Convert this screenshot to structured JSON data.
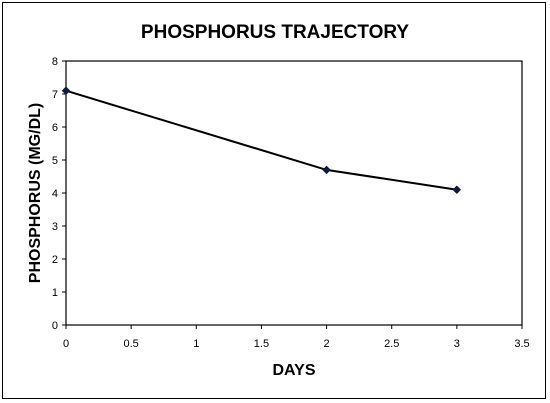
{
  "chart_data": {
    "type": "line",
    "title": "PHOSPHORUS TRAJECTORY",
    "xlabel": "DAYS",
    "ylabel": "PHOSPHORUS (MG/DL)",
    "xlim": [
      0,
      3.5
    ],
    "ylim": [
      0,
      8
    ],
    "xticks": [
      "0",
      "0.5",
      "1",
      "1.5",
      "2",
      "2.5",
      "3",
      "3.5"
    ],
    "yticks": [
      "0",
      "1",
      "2",
      "3",
      "4",
      "5",
      "6",
      "7",
      "8"
    ],
    "grid": false,
    "legend": "none",
    "series": [
      {
        "x": [
          0,
          2,
          3
        ],
        "y": [
          7.1,
          4.7,
          4.1
        ],
        "color": "#000000",
        "marker": "diamond",
        "marker_color": "#0d1b3e"
      }
    ]
  }
}
